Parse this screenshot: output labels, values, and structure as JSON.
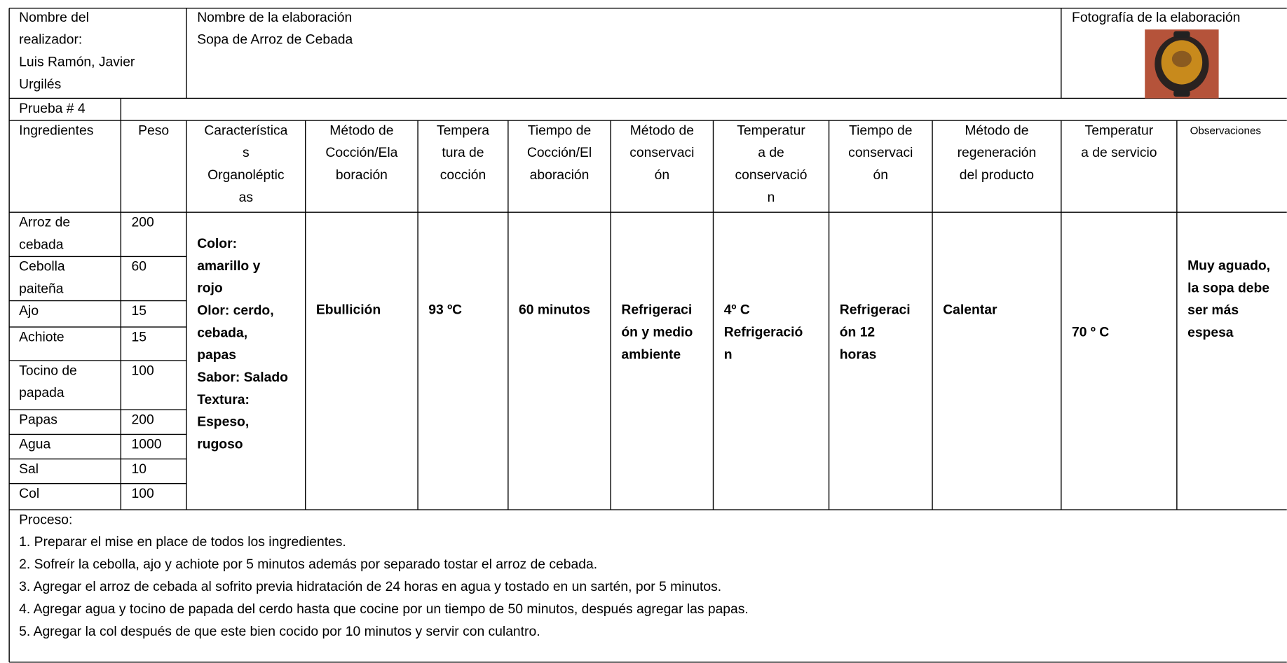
{
  "header": {
    "author_label": [
      "Nombre del",
      "realizador:"
    ],
    "author": [
      "Luis Ramón, Javier",
      "Urgilés"
    ],
    "dish_label": "Nombre de la elaboración",
    "dish": "Sopa de Arroz de Cebada",
    "photo_label": "Fotografía de la elaboración"
  },
  "test": "Prueba # 4",
  "columns": [
    [
      "Ingredientes"
    ],
    [
      "Peso"
    ],
    [
      "Característica",
      "s",
      "Organoléptic",
      "as"
    ],
    [
      "Método de",
      "Cocción/Ela",
      "boración"
    ],
    [
      "Tempera",
      "tura de",
      "cocción"
    ],
    [
      "Tiempo de",
      "Cocción/El",
      "aboración"
    ],
    [
      "Método de",
      "conservaci",
      "ón"
    ],
    [
      "Temperatur",
      "a de",
      "conservació",
      "n"
    ],
    [
      "Tiempo de",
      "conservaci",
      "ón"
    ],
    [
      "Método de",
      "regeneración",
      "del producto"
    ],
    [
      "Temperatur",
      "a de servicio"
    ],
    [
      "Observaciones"
    ]
  ],
  "ingredients": [
    {
      "name": [
        "Arroz de",
        "cebada"
      ],
      "weight": 200
    },
    {
      "name": [
        "Cebolla",
        "paiteña"
      ],
      "weight": 60
    },
    {
      "name": [
        "Ajo"
      ],
      "weight": 15
    },
    {
      "name": [
        "Achiote"
      ],
      "weight": 15
    },
    {
      "name": [
        "Tocino de",
        "papada"
      ],
      "weight": 100
    },
    {
      "name": [
        "Papas"
      ],
      "weight": 200
    },
    {
      "name": [
        "Agua"
      ],
      "weight": 1000
    },
    {
      "name": [
        "Sal"
      ],
      "weight": 10
    },
    {
      "name": [
        "Col"
      ],
      "weight": 100
    }
  ],
  "details": {
    "organoleptic": [
      "Color:",
      "amarillo y",
      "rojo",
      "Olor: cerdo,",
      "cebada,",
      "papas",
      "Sabor: Salado",
      "Textura:",
      "Espeso,",
      "rugoso"
    ],
    "cooking_method": [
      "Ebullición"
    ],
    "cooking_temperature": [
      "93 ºC"
    ],
    "cooking_time": [
      "60 minutos"
    ],
    "conservation_method": [
      "Refrigeraci",
      "ón y medio",
      "ambiente"
    ],
    "conservation_temperature": [
      "4º C",
      "Refrigeració",
      "n"
    ],
    "conservation_time": [
      "Refrigeraci",
      "ón 12",
      "horas"
    ],
    "regeneration_method": [
      "Calentar"
    ],
    "serving_temperature": [
      "70 º C"
    ],
    "observations": [
      "Muy aguado,",
      "la sopa debe",
      "ser más",
      "espesa"
    ]
  },
  "process": {
    "label": "Proceso:",
    "steps": [
      "1. Preparar el mise en place de todos los ingredientes.",
      "2. Sofreír la cebolla, ajo y achiote por 5 minutos además por separado tostar el arroz de cebada.",
      "3. Agregar el arroz de cebada al sofrito previa hidratación de 24 horas en agua y tostado en un sartén, por 5 minutos.",
      "4. Agregar agua y tocino de papada del cerdo hasta que cocine por un tiempo de 50 minutos, después agregar las papas.",
      "5. Agregar la col después de que este bien cocido por 10 minutos y servir con culantro."
    ]
  }
}
